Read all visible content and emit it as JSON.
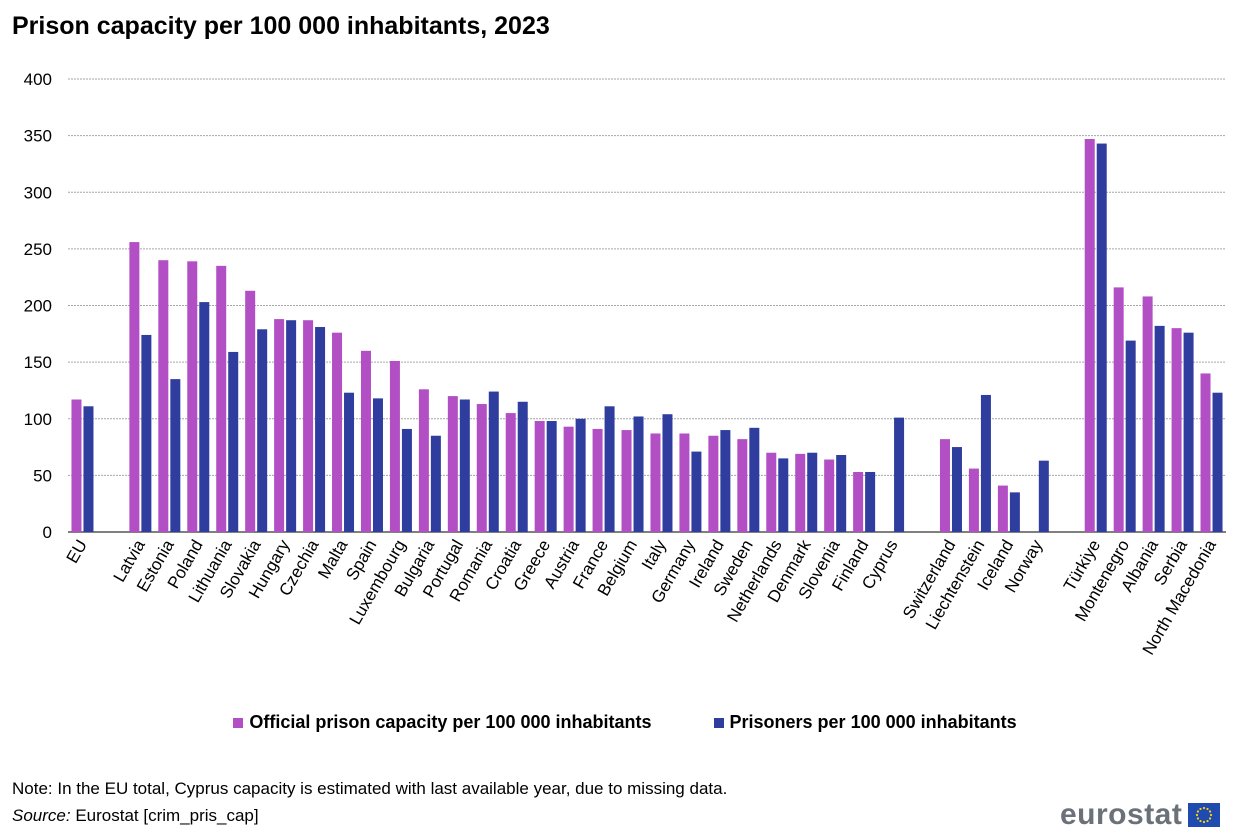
{
  "title": "Prison capacity per 100 000 inhabitants, 2023",
  "note": "Note: In the EU total, Cyprus capacity is estimated with last available  year, due to missing data.",
  "source_label": "Source:",
  "source_text": " Eurostat [crim_pris_cap]",
  "logo_text": "eurostat",
  "colors": {
    "capacity": "#b24fc4",
    "prisoners": "#2e3d9e",
    "grid": "#a6a6a6"
  },
  "chart_data": {
    "type": "bar",
    "title": "Prison capacity per 100 000 inhabitants, 2023",
    "xlabel": "",
    "ylabel": "",
    "ylim": [
      0,
      400
    ],
    "yticks": [
      0,
      50,
      100,
      150,
      200,
      250,
      300,
      350,
      400
    ],
    "grid": true,
    "legend_position": "bottom",
    "groups": [
      [
        "EU"
      ],
      [
        "Latvia",
        "Estonia",
        "Poland",
        "Lithuania",
        "Slovakia",
        "Hungary",
        "Czechia",
        "Malta",
        "Spain",
        "Luxembourg",
        "Bulgaria",
        "Portugal",
        "Romania",
        "Croatia",
        "Greece",
        "Austria",
        "France",
        "Belgium",
        "Italy",
        "Germany",
        "Ireland",
        "Sweden",
        "Netherlands",
        "Denmark",
        "Slovenia",
        "Finland",
        "Cyprus"
      ],
      [
        "Switzerland",
        "Liechtenstein",
        "Iceland",
        "Norway"
      ],
      [
        "Türkiye",
        "Montenegro",
        "Albania",
        "Serbia",
        "North Macedonia"
      ]
    ],
    "categories": [
      "EU",
      "Latvia",
      "Estonia",
      "Poland",
      "Lithuania",
      "Slovakia",
      "Hungary",
      "Czechia",
      "Malta",
      "Spain",
      "Luxembourg",
      "Bulgaria",
      "Portugal",
      "Romania",
      "Croatia",
      "Greece",
      "Austria",
      "France",
      "Belgium",
      "Italy",
      "Germany",
      "Ireland",
      "Sweden",
      "Netherlands",
      "Denmark",
      "Slovenia",
      "Finland",
      "Cyprus",
      "Switzerland",
      "Liechtenstein",
      "Iceland",
      "Norway",
      "Türkiye",
      "Montenegro",
      "Albania",
      "Serbia",
      "North Macedonia"
    ],
    "series": [
      {
        "name": "Official prison capacity per 100 000 inhabitants",
        "values": [
          117,
          256,
          240,
          239,
          235,
          213,
          188,
          187,
          176,
          160,
          151,
          126,
          120,
          113,
          105,
          98,
          93,
          91,
          90,
          87,
          87,
          85,
          82,
          70,
          69,
          64,
          53,
          null,
          82,
          56,
          41,
          null,
          347,
          216,
          208,
          180,
          140
        ]
      },
      {
        "name": "Prisoners per 100 000 inhabitants",
        "values": [
          111,
          174,
          135,
          203,
          159,
          179,
          187,
          181,
          123,
          118,
          91,
          85,
          117,
          124,
          115,
          98,
          100,
          111,
          102,
          104,
          71,
          90,
          92,
          65,
          70,
          68,
          53,
          101,
          75,
          121,
          35,
          63,
          343,
          169,
          182,
          176,
          123
        ]
      }
    ]
  }
}
